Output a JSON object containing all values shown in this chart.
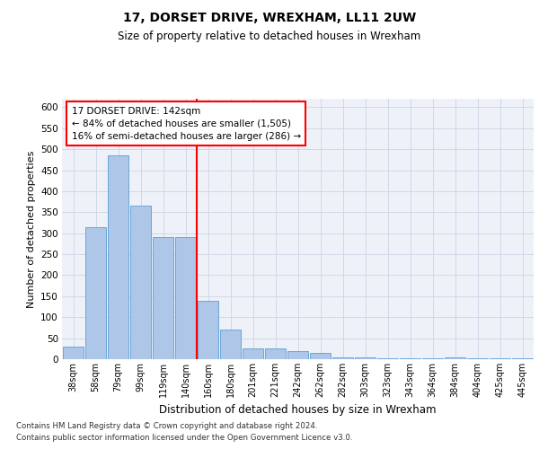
{
  "title": "17, DORSET DRIVE, WREXHAM, LL11 2UW",
  "subtitle": "Size of property relative to detached houses in Wrexham",
  "xlabel": "Distribution of detached houses by size in Wrexham",
  "ylabel": "Number of detached properties",
  "bar_labels": [
    "38sqm",
    "58sqm",
    "79sqm",
    "99sqm",
    "119sqm",
    "140sqm",
    "160sqm",
    "180sqm",
    "201sqm",
    "221sqm",
    "242sqm",
    "262sqm",
    "282sqm",
    "303sqm",
    "323sqm",
    "343sqm",
    "364sqm",
    "384sqm",
    "404sqm",
    "425sqm",
    "445sqm"
  ],
  "bar_values": [
    30,
    315,
    485,
    365,
    290,
    290,
    140,
    70,
    25,
    25,
    20,
    15,
    5,
    5,
    3,
    3,
    3,
    5,
    3,
    3,
    3
  ],
  "bar_color": "#aec6e8",
  "bar_edge_color": "#5a9fd4",
  "grid_color": "#d0d8e8",
  "background_color": "#eef2f8",
  "red_line_x": 5.5,
  "annotation_text": "17 DORSET DRIVE: 142sqm\n← 84% of detached houses are smaller (1,505)\n16% of semi-detached houses are larger (286) →",
  "footnote1": "Contains HM Land Registry data © Crown copyright and database right 2024.",
  "footnote2": "Contains public sector information licensed under the Open Government Licence v3.0.",
  "ylim": [
    0,
    620
  ],
  "yticks": [
    0,
    50,
    100,
    150,
    200,
    250,
    300,
    350,
    400,
    450,
    500,
    550,
    600
  ]
}
